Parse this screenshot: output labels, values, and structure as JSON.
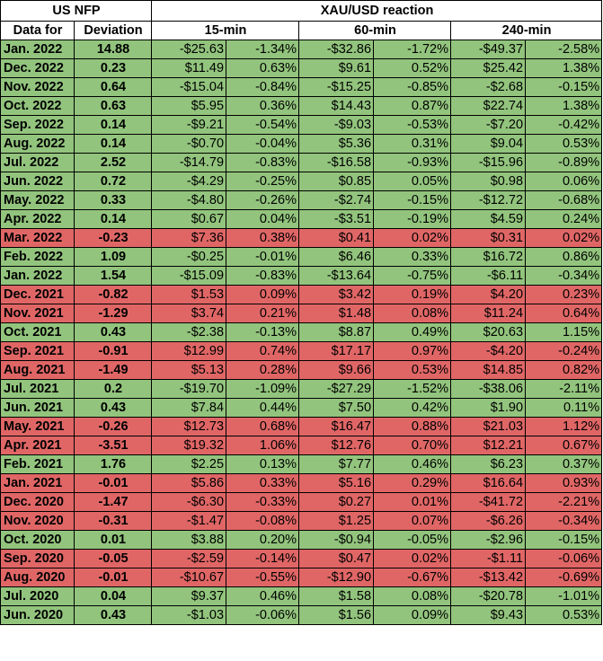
{
  "header": {
    "us_nfp": "US NFP",
    "xau_reaction": "XAU/USD reaction",
    "data_for": "Data for",
    "deviation": "Deviation",
    "min15": "15-min",
    "min60": "60-min",
    "min240": "240-min"
  },
  "colors": {
    "positive": "#92c47d",
    "negative": "#e06666"
  },
  "rows": [
    {
      "date": "Jan. 2022",
      "dev": "14.88",
      "d15": "-$25.63",
      "p15": "-1.34%",
      "d60": "-$32.86",
      "p60": "-1.72%",
      "d240": "-$49.37",
      "p240": "-2.58%",
      "sign": "green"
    },
    {
      "date": "Dec. 2022",
      "dev": "0.23",
      "d15": "$11.49",
      "p15": "0.63%",
      "d60": "$9.61",
      "p60": "0.52%",
      "d240": "$25.42",
      "p240": "1.38%",
      "sign": "green"
    },
    {
      "date": "Nov. 2022",
      "dev": "0.64",
      "d15": "-$15.04",
      "p15": "-0.84%",
      "d60": "-$15.25",
      "p60": "-0.85%",
      "d240": "-$2.68",
      "p240": "-0.15%",
      "sign": "green"
    },
    {
      "date": "Oct. 2022",
      "dev": "0.63",
      "d15": "$5.95",
      "p15": "0.36%",
      "d60": "$14.43",
      "p60": "0.87%",
      "d240": "$22.74",
      "p240": "1.38%",
      "sign": "green"
    },
    {
      "date": "Sep. 2022",
      "dev": "0.14",
      "d15": "-$9.21",
      "p15": "-0.54%",
      "d60": "-$9.03",
      "p60": "-0.53%",
      "d240": "-$7.20",
      "p240": "-0.42%",
      "sign": "green"
    },
    {
      "date": "Aug. 2022",
      "dev": "0.14",
      "d15": "-$0.70",
      "p15": "-0.04%",
      "d60": "$5.36",
      "p60": "0.31%",
      "d240": "$9.04",
      "p240": "0.53%",
      "sign": "green"
    },
    {
      "date": "Jul. 2022",
      "dev": "2.52",
      "d15": "-$14.79",
      "p15": "-0.83%",
      "d60": "-$16.58",
      "p60": "-0.93%",
      "d240": "-$15.96",
      "p240": "-0.89%",
      "sign": "green"
    },
    {
      "date": "Jun. 2022",
      "dev": "0.72",
      "d15": "-$4.29",
      "p15": "-0.25%",
      "d60": "$0.85",
      "p60": "0.05%",
      "d240": "$0.98",
      "p240": "0.06%",
      "sign": "green"
    },
    {
      "date": "May. 2022",
      "dev": "0.33",
      "d15": "-$4.80",
      "p15": "-0.26%",
      "d60": "-$2.74",
      "p60": "-0.15%",
      "d240": "-$12.72",
      "p240": "-0.68%",
      "sign": "green"
    },
    {
      "date": "Apr. 2022",
      "dev": "0.14",
      "d15": "$0.67",
      "p15": "0.04%",
      "d60": "-$3.51",
      "p60": "-0.19%",
      "d240": "$4.59",
      "p240": "0.24%",
      "sign": "green"
    },
    {
      "date": "Mar. 2022",
      "dev": "-0.23",
      "d15": "$7.36",
      "p15": "0.38%",
      "d60": "$0.41",
      "p60": "0.02%",
      "d240": "$0.31",
      "p240": "0.02%",
      "sign": "red"
    },
    {
      "date": "Feb. 2022",
      "dev": "1.09",
      "d15": "-$0.25",
      "p15": "-0.01%",
      "d60": "$6.46",
      "p60": "0.33%",
      "d240": "$16.72",
      "p240": "0.86%",
      "sign": "green"
    },
    {
      "date": "Jan. 2022",
      "dev": "1.54",
      "d15": "-$15.09",
      "p15": "-0.83%",
      "d60": "-$13.64",
      "p60": "-0.75%",
      "d240": "-$6.11",
      "p240": "-0.34%",
      "sign": "green"
    },
    {
      "date": "Dec. 2021",
      "dev": "-0.82",
      "d15": "$1.53",
      "p15": "0.09%",
      "d60": "$3.42",
      "p60": "0.19%",
      "d240": "$4.20",
      "p240": "0.23%",
      "sign": "red"
    },
    {
      "date": "Nov. 2021",
      "dev": "-1.29",
      "d15": "$3.74",
      "p15": "0.21%",
      "d60": "$1.48",
      "p60": "0.08%",
      "d240": "$11.24",
      "p240": "0.64%",
      "sign": "red"
    },
    {
      "date": "Oct. 2021",
      "dev": "0.43",
      "d15": "-$2.38",
      "p15": "-0.13%",
      "d60": "$8.87",
      "p60": "0.49%",
      "d240": "$20.63",
      "p240": "1.15%",
      "sign": "green"
    },
    {
      "date": "Sep. 2021",
      "dev": "-0.91",
      "d15": "$12.99",
      "p15": "0.74%",
      "d60": "$17.17",
      "p60": "0.97%",
      "d240": "-$4.20",
      "p240": "-0.24%",
      "sign": "red"
    },
    {
      "date": "Aug. 2021",
      "dev": "-1.49",
      "d15": "$5.13",
      "p15": "0.28%",
      "d60": "$9.66",
      "p60": "0.53%",
      "d240": "$14.85",
      "p240": "0.82%",
      "sign": "red"
    },
    {
      "date": "Jul. 2021",
      "dev": "0.2",
      "d15": "-$19.70",
      "p15": "-1.09%",
      "d60": "-$27.29",
      "p60": "-1.52%",
      "d240": "-$38.06",
      "p240": "-2.11%",
      "sign": "green"
    },
    {
      "date": "Jun. 2021",
      "dev": "0.43",
      "d15": "$7.84",
      "p15": "0.44%",
      "d60": "$7.50",
      "p60": "0.42%",
      "d240": "$1.90",
      "p240": "0.11%",
      "sign": "green"
    },
    {
      "date": "May. 2021",
      "dev": "-0.26",
      "d15": "$12.73",
      "p15": "0.68%",
      "d60": "$16.47",
      "p60": "0.88%",
      "d240": "$21.03",
      "p240": "1.12%",
      "sign": "red"
    },
    {
      "date": "Apr. 2021",
      "dev": "-3.51",
      "d15": "$19.32",
      "p15": "1.06%",
      "d60": "$12.76",
      "p60": "0.70%",
      "d240": "$12.21",
      "p240": "0.67%",
      "sign": "red"
    },
    {
      "date": "Feb. 2021",
      "dev": "1.76",
      "d15": "$2.25",
      "p15": "0.13%",
      "d60": "$7.77",
      "p60": "0.46%",
      "d240": "$6.23",
      "p240": "0.37%",
      "sign": "green"
    },
    {
      "date": "Jan. 2021",
      "dev": "-0.01",
      "d15": "$5.86",
      "p15": "0.33%",
      "d60": "$5.16",
      "p60": "0.29%",
      "d240": "$16.64",
      "p240": "0.93%",
      "sign": "red"
    },
    {
      "date": "Dec. 2020",
      "dev": "-1.47",
      "d15": "-$6.30",
      "p15": "-0.33%",
      "d60": "$0.27",
      "p60": "0.01%",
      "d240": "-$41.72",
      "p240": "-2.21%",
      "sign": "red"
    },
    {
      "date": "Nov. 2020",
      "dev": "-0.31",
      "d15": "-$1.47",
      "p15": "-0.08%",
      "d60": "$1.25",
      "p60": "0.07%",
      "d240": "-$6.26",
      "p240": "-0.34%",
      "sign": "red"
    },
    {
      "date": "Oct. 2020",
      "dev": "0.01",
      "d15": "$3.88",
      "p15": "0.20%",
      "d60": "-$0.94",
      "p60": "-0.05%",
      "d240": "-$2.96",
      "p240": "-0.15%",
      "sign": "green"
    },
    {
      "date": "Sep. 2020",
      "dev": "-0.05",
      "d15": "-$2.59",
      "p15": "-0.14%",
      "d60": "$0.47",
      "p60": "0.02%",
      "d240": "-$1.11",
      "p240": "-0.06%",
      "sign": "red"
    },
    {
      "date": "Aug. 2020",
      "dev": "-0.01",
      "d15": "-$10.67",
      "p15": "-0.55%",
      "d60": "-$12.90",
      "p60": "-0.67%",
      "d240": "-$13.42",
      "p240": "-0.69%",
      "sign": "red"
    },
    {
      "date": "Jul. 2020",
      "dev": "0.04",
      "d15": "$9.37",
      "p15": "0.46%",
      "d60": "$1.58",
      "p60": "0.08%",
      "d240": "-$20.78",
      "p240": "-1.01%",
      "sign": "green"
    },
    {
      "date": "Jun. 2020",
      "dev": "0.43",
      "d15": "-$1.03",
      "p15": "-0.06%",
      "d60": "$1.56",
      "p60": "0.09%",
      "d240": "$9.43",
      "p240": "0.53%",
      "sign": "green"
    }
  ]
}
